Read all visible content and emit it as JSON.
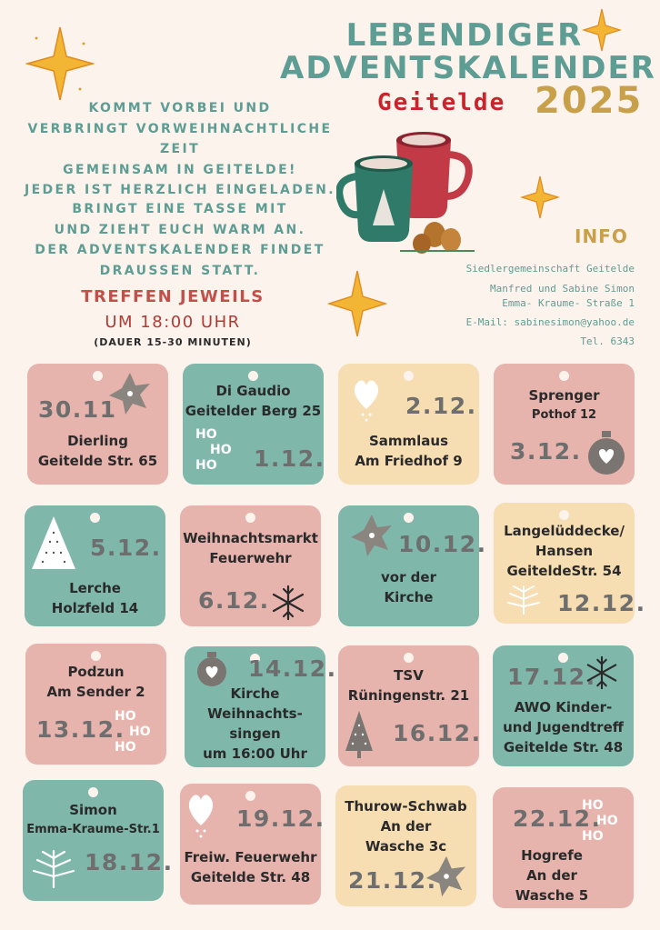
{
  "header": {
    "title_line1": "LEBENDIGER",
    "title_line2": "ADVENTSKALENDER",
    "place": "Geitelde",
    "year": "2025"
  },
  "intro": {
    "p1": [
      "KOMMT VORBEI UND",
      "VERBRINGT VORWEIHNACHTLICHE ZEIT",
      "GEMEINSAM IN GEITELDE!",
      "JEDER IST HERZLICH EINGELADEN."
    ],
    "p2": [
      "BRINGT EINE TASSE MIT",
      "UND ZIEHT EUCH WARM AN.",
      "DER ADVENTSKALENDER FINDET",
      "DRAUSSEN STATT."
    ]
  },
  "meeting": {
    "line1": "TREFFEN JEWEILS",
    "line2": "UM 18:00 UHR",
    "duration": "(DAUER 15-30 MINUTEN)"
  },
  "info": {
    "title": "INFO",
    "lines": [
      "Siedlergemeinschaft Geitelde",
      "Manfred und Sabine Simon",
      "Emma- Kraume- Straße 1",
      "E-Mail: sabinesimon@yahoo.de",
      "Tel. 6343"
    ]
  },
  "colors": {
    "teal": "#7fb8ab",
    "pink": "#e6b3ad",
    "cream": "#f6ddb2",
    "title_teal": "#5d9d94",
    "red": "#c9232c",
    "gold": "#c9a04a"
  },
  "cards": [
    {
      "date": "30.11",
      "lines": [
        "Dierling",
        "Geitelde Str. 65"
      ],
      "icon": "star-icon"
    },
    {
      "date": "1.12.",
      "lines": [
        "Di Gaudio",
        "Geitelder Berg 25"
      ],
      "icon": "hohoho-text",
      "hoho": [
        "HO",
        "HO",
        "HO"
      ]
    },
    {
      "date": "2.12.",
      "lines": [
        "Sammlaus",
        "Am Friedhof 9"
      ],
      "icon": "heart-icon"
    },
    {
      "date": "3.12.",
      "lines": [
        "Sprenger",
        "Pothof 12"
      ],
      "icon": "ornament-icon"
    },
    {
      "date": "5.12.",
      "lines": [
        "Lerche",
        "Holzfeld 14"
      ],
      "icon": "tree-icon"
    },
    {
      "date": "6.12.",
      "lines": [
        "Weihnachtsmarkt",
        "Feuerwehr"
      ],
      "icon": "snowflake-icon"
    },
    {
      "date": "10.12.",
      "lines": [
        "vor der",
        "Kirche"
      ],
      "icon": "star-icon"
    },
    {
      "date": "12.12.",
      "lines": [
        "Langelüddecke/",
        "Hansen",
        "GeiteldeStr. 54"
      ],
      "icon": "fir-branch-icon"
    },
    {
      "date": "13.12.",
      "lines": [
        "Podzun",
        "Am Sender 2"
      ],
      "icon": "hohoho-text",
      "hoho": [
        "HO",
        "HO",
        "HO"
      ]
    },
    {
      "date": "14.12.",
      "lines": [
        "Kirche",
        "Weihnachts-",
        "singen",
        "um 16:00 Uhr"
      ],
      "icon": "ornament-icon"
    },
    {
      "date": "16.12.",
      "lines": [
        "TSV",
        "Rüningenstr. 21"
      ],
      "icon": "tree-icon"
    },
    {
      "date": "17.12.",
      "lines": [
        "AWO Kinder-",
        "und Jugendtreff",
        "Geitelde Str. 48"
      ],
      "icon": "snowflake-icon"
    },
    {
      "date": "18.12.",
      "lines": [
        "Simon",
        "Emma-Kraume-Str.1"
      ],
      "icon": "fir-branch-icon"
    },
    {
      "date": "19.12.",
      "lines": [
        "Freiw. Feuerwehr",
        "Geitelde Str. 48"
      ],
      "icon": "heart-icon"
    },
    {
      "date": "21.12.",
      "lines": [
        "Thurow-Schwab",
        "An der",
        "Wasche 3c"
      ],
      "icon": "star-icon"
    },
    {
      "date": "22.12.",
      "lines": [
        "Hogrefe",
        "An der",
        "Wasche 5"
      ],
      "icon": "hohoho-text",
      "hoho": [
        "HO",
        "HO",
        "HO"
      ]
    }
  ]
}
